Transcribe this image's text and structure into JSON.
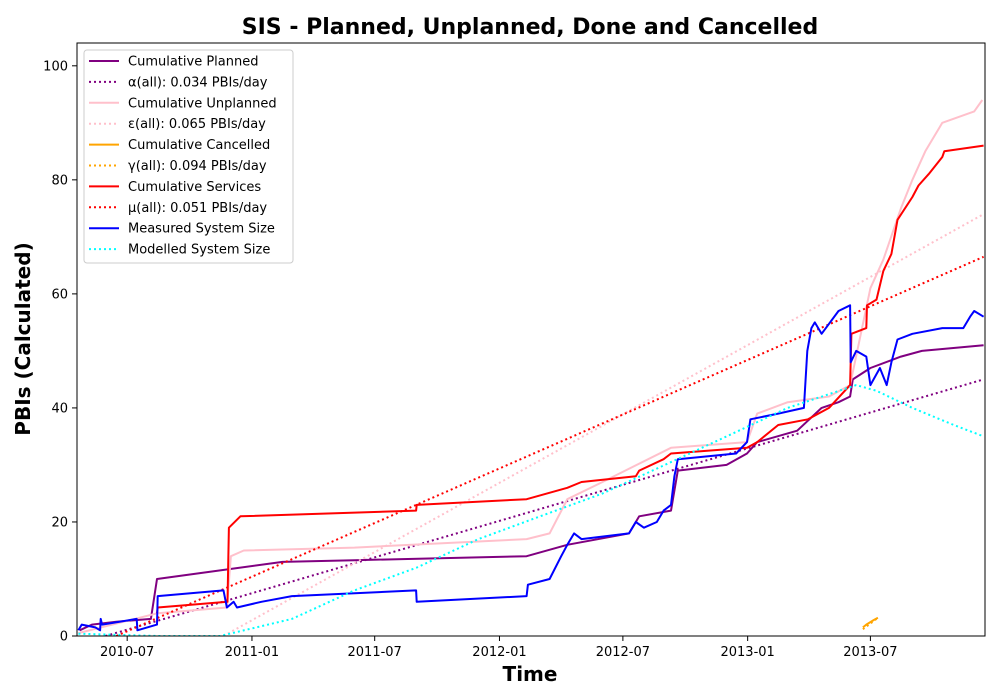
{
  "chart_data": {
    "type": "line",
    "title": "SIS - Planned, Unplanned, Done  and Cancelled",
    "xlabel": "Time",
    "ylabel": "PBIs (Calculated)",
    "xlim": [
      "2010-04-18",
      "2013-12-17"
    ],
    "ylim": [
      0,
      104
    ],
    "x_ticks": [
      {
        "date": "2010-07-01",
        "label": "2010-07"
      },
      {
        "date": "2011-01-01",
        "label": "2011-01"
      },
      {
        "date": "2011-07-01",
        "label": "2011-07"
      },
      {
        "date": "2012-01-01",
        "label": "2012-01"
      },
      {
        "date": "2012-07-01",
        "label": "2012-07"
      },
      {
        "date": "2013-01-01",
        "label": "2013-01"
      },
      {
        "date": "2013-07-01",
        "label": "2013-07"
      }
    ],
    "y_ticks": [
      0,
      20,
      40,
      60,
      80,
      100
    ],
    "grid": false,
    "legend_position": "upper-left",
    "series": [
      {
        "name": "Cumulative Planned",
        "color": "#800080",
        "style": "solid",
        "points": [
          [
            "2010-04-22",
            1
          ],
          [
            "2010-05-10",
            2
          ],
          [
            "2010-06-15",
            2.5
          ],
          [
            "2010-08-05",
            3
          ],
          [
            "2010-08-14",
            10
          ],
          [
            "2010-10-15",
            11
          ],
          [
            "2011-02-15",
            13
          ],
          [
            "2011-06-01",
            13.3
          ],
          [
            "2012-02-10",
            14
          ],
          [
            "2012-04-10",
            16
          ],
          [
            "2012-07-10",
            18
          ],
          [
            "2012-07-25",
            21
          ],
          [
            "2012-09-10",
            22
          ],
          [
            "2012-09-20",
            29
          ],
          [
            "2012-12-01",
            30
          ],
          [
            "2012-12-31",
            32
          ],
          [
            "2013-01-15",
            34
          ],
          [
            "2013-03-15",
            36
          ],
          [
            "2013-04-20",
            40
          ],
          [
            "2013-05-15",
            41
          ],
          [
            "2013-06-01",
            42
          ],
          [
            "2013-06-05",
            45
          ],
          [
            "2013-07-01",
            47
          ],
          [
            "2013-08-15",
            49
          ],
          [
            "2013-09-15",
            50
          ],
          [
            "2013-12-15",
            51
          ]
        ]
      },
      {
        "name": "α(all): 0.034 PBIs/day",
        "color": "#800080",
        "style": "dotted",
        "points": [
          [
            "2010-05-30",
            0
          ],
          [
            "2013-12-15",
            45
          ]
        ]
      },
      {
        "name": "Cumulative Unplanned",
        "color": "#ffc0cb",
        "style": "solid",
        "points": [
          [
            "2010-04-20",
            0.5
          ],
          [
            "2010-08-15",
            4
          ],
          [
            "2010-11-25",
            5
          ],
          [
            "2010-12-01",
            14
          ],
          [
            "2010-12-20",
            15
          ],
          [
            "2011-06-01",
            15.5
          ],
          [
            "2012-02-10",
            17
          ],
          [
            "2012-03-15",
            18
          ],
          [
            "2012-04-10",
            24
          ],
          [
            "2012-06-01",
            27
          ],
          [
            "2012-09-10",
            33
          ],
          [
            "2012-12-31",
            34
          ],
          [
            "2013-01-15",
            39
          ],
          [
            "2013-03-01",
            41
          ],
          [
            "2013-05-01",
            42
          ],
          [
            "2013-06-01",
            44
          ],
          [
            "2013-07-01",
            61
          ],
          [
            "2013-07-20",
            66
          ],
          [
            "2013-08-15",
            75
          ],
          [
            "2013-09-01",
            80
          ],
          [
            "2013-09-20",
            85
          ],
          [
            "2013-10-15",
            90
          ],
          [
            "2013-12-01",
            92
          ],
          [
            "2013-12-13",
            94
          ]
        ]
      },
      {
        "name": "ε(all): 0.065 PBIs/day",
        "color": "#ffc0cb",
        "style": "dotted",
        "points": [
          [
            "2010-11-20",
            0
          ],
          [
            "2013-12-15",
            74
          ]
        ]
      },
      {
        "name": "Cumulative Cancelled",
        "color": "#ffa500",
        "style": "solid",
        "points": [
          [
            "2013-06-20",
            1.5
          ],
          [
            "2013-06-25",
            2
          ],
          [
            "2013-07-06",
            2.8
          ],
          [
            "2013-07-12",
            3.2
          ]
        ]
      },
      {
        "name": "γ(all): 0.094 PBIs/day",
        "color": "#ffa500",
        "style": "dotted",
        "points": [
          [
            "2013-06-20",
            1.2
          ],
          [
            "2013-07-12",
            3.2
          ]
        ]
      },
      {
        "name": "Cumulative Services",
        "color": "#ff0000",
        "style": "solid",
        "points": [
          [
            "2010-08-14",
            4
          ],
          [
            "2010-08-15",
            5
          ],
          [
            "2010-11-26",
            6
          ],
          [
            "2010-11-28",
            19
          ],
          [
            "2010-12-15",
            21
          ],
          [
            "2011-08-31",
            22
          ],
          [
            "2011-09-01",
            23
          ],
          [
            "2012-02-10",
            24
          ],
          [
            "2012-04-10",
            26
          ],
          [
            "2012-05-01",
            27
          ],
          [
            "2012-07-20",
            28
          ],
          [
            "2012-07-25",
            29
          ],
          [
            "2012-08-30",
            31
          ],
          [
            "2012-09-10",
            32
          ],
          [
            "2012-12-31",
            33
          ],
          [
            "2013-01-15",
            34
          ],
          [
            "2013-02-15",
            37
          ],
          [
            "2013-03-31",
            38
          ],
          [
            "2013-05-01",
            40
          ],
          [
            "2013-06-01",
            44
          ],
          [
            "2013-06-03",
            53
          ],
          [
            "2013-06-25",
            54
          ],
          [
            "2013-06-26",
            58
          ],
          [
            "2013-07-10",
            59
          ],
          [
            "2013-07-20",
            64
          ],
          [
            "2013-08-01",
            67
          ],
          [
            "2013-08-10",
            73
          ],
          [
            "2013-09-01",
            77
          ],
          [
            "2013-09-10",
            79
          ],
          [
            "2013-09-25",
            81
          ],
          [
            "2013-10-15",
            84
          ],
          [
            "2013-10-18",
            85
          ],
          [
            "2013-12-15",
            86
          ]
        ]
      },
      {
        "name": "μ(all): 0.051 PBIs/day",
        "color": "#ff0000",
        "style": "dotted",
        "points": [
          [
            "2010-06-15",
            0
          ],
          [
            "2013-12-15",
            66.5
          ]
        ]
      },
      {
        "name": "Measured System Size",
        "color": "#0000ff",
        "style": "solid",
        "points": [
          [
            "2010-04-20",
            1
          ],
          [
            "2010-04-25",
            2
          ],
          [
            "2010-05-15",
            1.5
          ],
          [
            "2010-05-22",
            1
          ],
          [
            "2010-05-23",
            3
          ],
          [
            "2010-05-25",
            2
          ],
          [
            "2010-07-15",
            3
          ],
          [
            "2010-07-16",
            1
          ],
          [
            "2010-08-14",
            2
          ],
          [
            "2010-08-15",
            7
          ],
          [
            "2010-11-20",
            8
          ],
          [
            "2010-11-25",
            5
          ],
          [
            "2010-12-05",
            6
          ],
          [
            "2010-12-10",
            5
          ],
          [
            "2011-01-15",
            6
          ],
          [
            "2011-03-01",
            7
          ],
          [
            "2011-08-31",
            8
          ],
          [
            "2011-09-01",
            6
          ],
          [
            "2012-02-10",
            7
          ],
          [
            "2012-02-12",
            9
          ],
          [
            "2012-03-15",
            10
          ],
          [
            "2012-04-01",
            14
          ],
          [
            "2012-04-10",
            16
          ],
          [
            "2012-04-20",
            18
          ],
          [
            "2012-05-01",
            17
          ],
          [
            "2012-07-10",
            18
          ],
          [
            "2012-07-20",
            20
          ],
          [
            "2012-08-01",
            19
          ],
          [
            "2012-08-20",
            20
          ],
          [
            "2012-08-30",
            22
          ],
          [
            "2012-09-10",
            23
          ],
          [
            "2012-09-15",
            28
          ],
          [
            "2012-09-20",
            31
          ],
          [
            "2012-12-15",
            32
          ],
          [
            "2012-12-31",
            34
          ],
          [
            "2013-01-05",
            38
          ],
          [
            "2013-02-15",
            39
          ],
          [
            "2013-03-25",
            40
          ],
          [
            "2013-03-30",
            50
          ],
          [
            "2013-04-05",
            54
          ],
          [
            "2013-04-10",
            55
          ],
          [
            "2013-04-20",
            53
          ],
          [
            "2013-05-15",
            57
          ],
          [
            "2013-06-01",
            58
          ],
          [
            "2013-06-02",
            48
          ],
          [
            "2013-06-10",
            50
          ],
          [
            "2013-06-25",
            49
          ],
          [
            "2013-07-01",
            44
          ],
          [
            "2013-07-15",
            47
          ],
          [
            "2013-07-25",
            44
          ],
          [
            "2013-08-01",
            48
          ],
          [
            "2013-08-10",
            52
          ],
          [
            "2013-09-01",
            53
          ],
          [
            "2013-10-15",
            54
          ],
          [
            "2013-11-15",
            54
          ],
          [
            "2013-11-25",
            56
          ],
          [
            "2013-12-01",
            57
          ],
          [
            "2013-12-15",
            56
          ]
        ]
      },
      {
        "name": "Modelled System Size",
        "color": "#00ffff",
        "style": "dotted",
        "points": [
          [
            "2010-04-20",
            0.4
          ],
          [
            "2010-06-20",
            0.2
          ],
          [
            "2010-08-15",
            0
          ],
          [
            "2010-11-15",
            0
          ],
          [
            "2011-03-01",
            3
          ],
          [
            "2011-06-01",
            8
          ],
          [
            "2011-09-01",
            12
          ],
          [
            "2011-12-01",
            17
          ],
          [
            "2012-03-01",
            21
          ],
          [
            "2012-06-01",
            25
          ],
          [
            "2012-09-01",
            30
          ],
          [
            "2012-12-01",
            35
          ],
          [
            "2013-03-01",
            40
          ],
          [
            "2013-06-10",
            44
          ],
          [
            "2013-07-10",
            43
          ],
          [
            "2013-09-01",
            40
          ],
          [
            "2013-11-01",
            37
          ],
          [
            "2013-12-15",
            35
          ]
        ]
      }
    ]
  }
}
